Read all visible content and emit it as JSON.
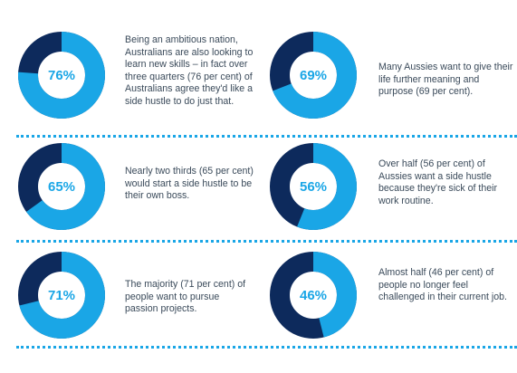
{
  "colors": {
    "accent": "#1aa6e6",
    "dark": "#0d2a5c",
    "text": "#3a4a5a"
  },
  "chart_data": {
    "type": "pie",
    "variant": "donut",
    "items": [
      {
        "percent": 76,
        "label": "76%",
        "text": "Being an ambitious nation, Australians are also looking to learn new skills – in fact over three quarters (76 per cent) of Australians agree they'd like a side hustle to do just that."
      },
      {
        "percent": 69,
        "label": "69%",
        "text": "Many Aussies want to give their life further meaning and purpose (69 per cent)."
      },
      {
        "percent": 65,
        "label": "65%",
        "text": "Nearly two thirds (65 per cent) would start a side hustle to be their own boss."
      },
      {
        "percent": 56,
        "label": "56%",
        "text": "Over half (56 per cent) of Aussies want a side hustle because they're sick of their work routine."
      },
      {
        "percent": 71,
        "label": "71%",
        "text": "The majority (71 per cent) of people want to pursue passion projects."
      },
      {
        "percent": 46,
        "label": "46%",
        "text": "Almost half (46 per cent) of people no longer feel challenged in their current job."
      }
    ]
  }
}
